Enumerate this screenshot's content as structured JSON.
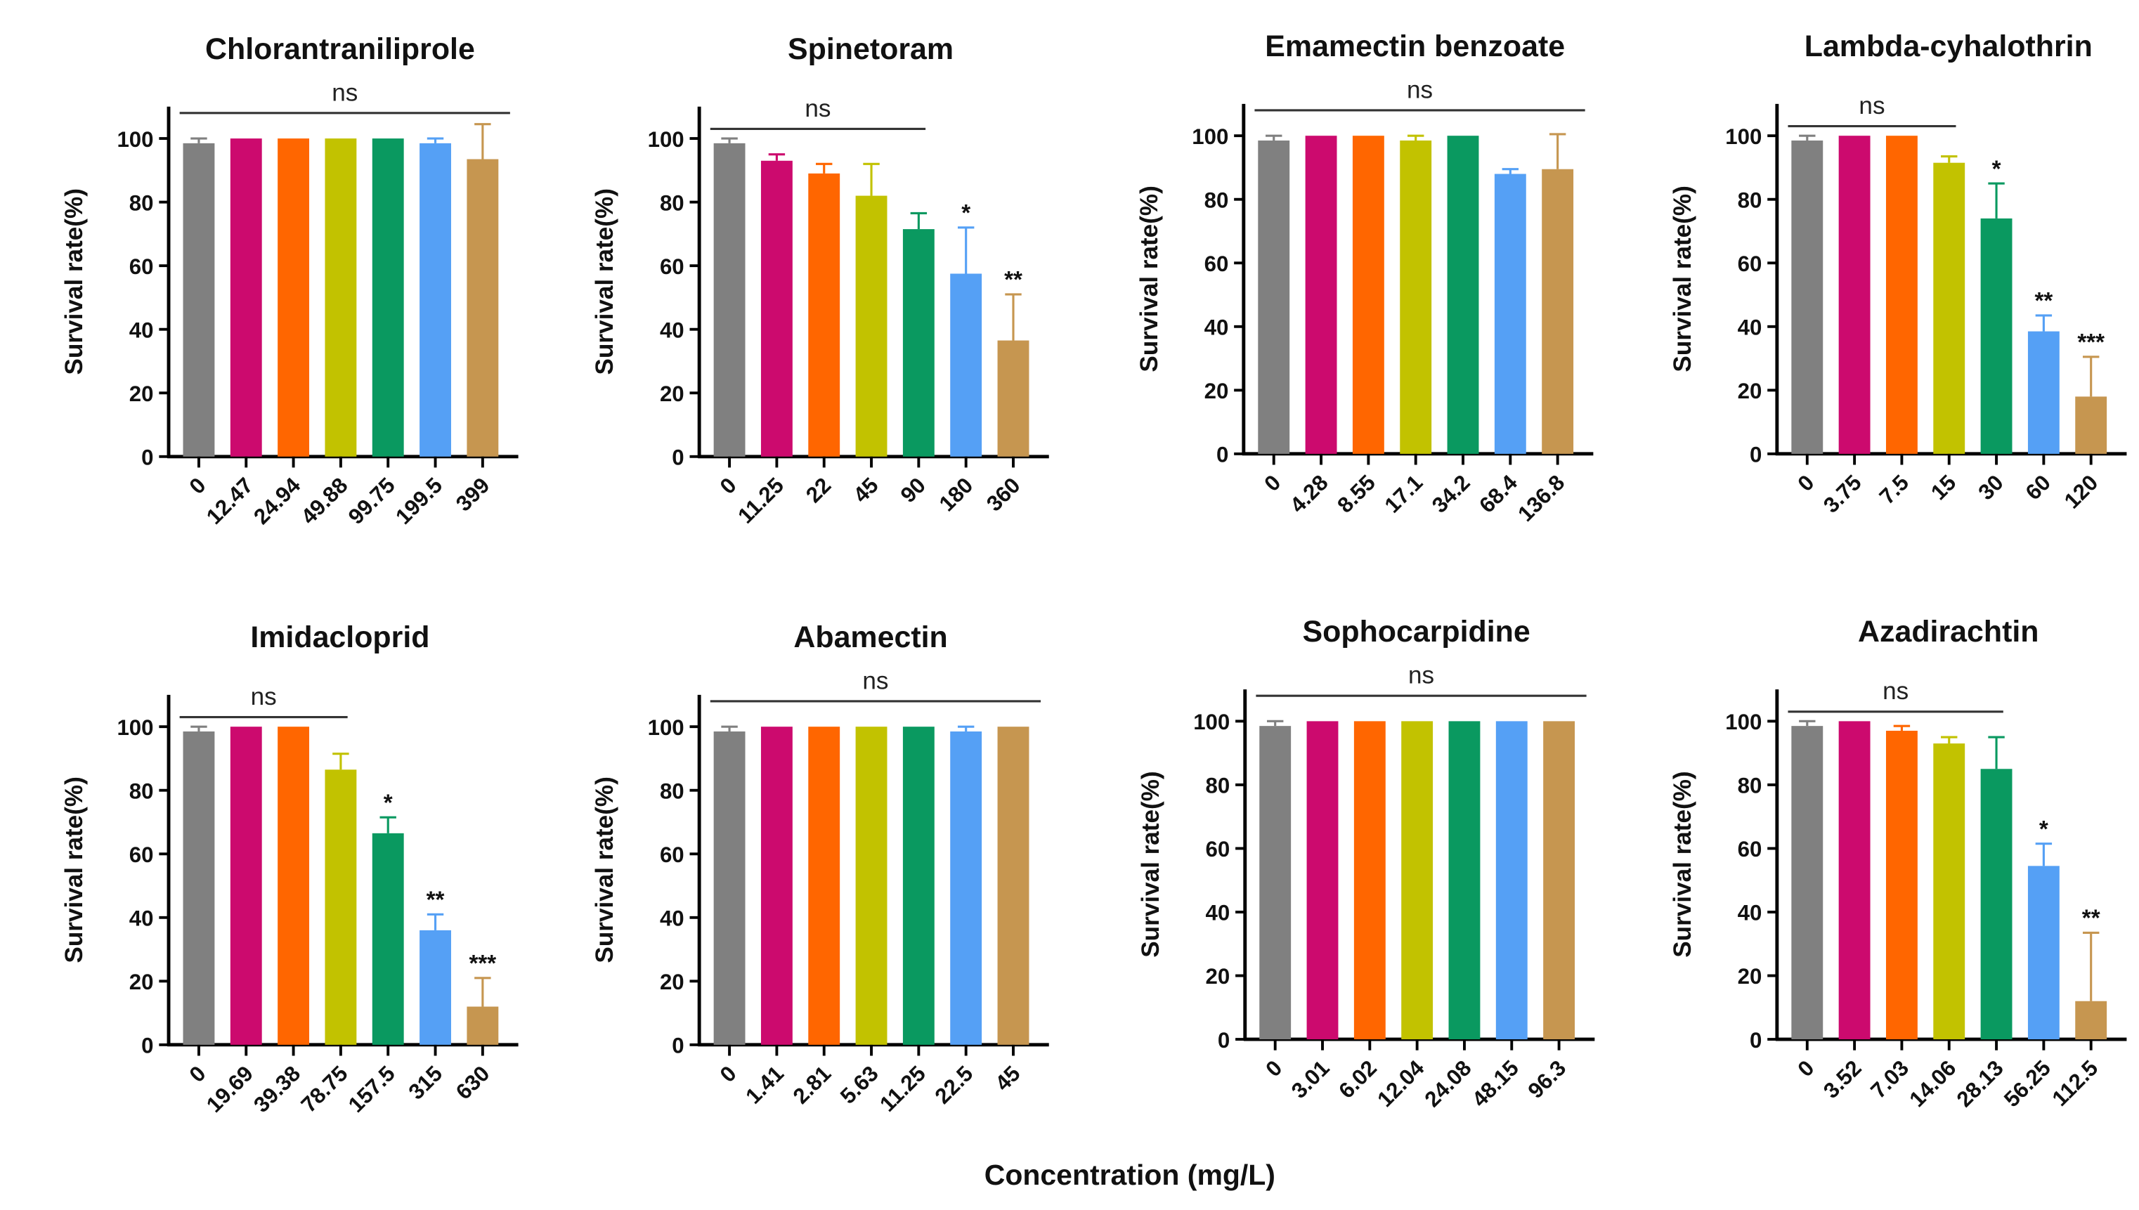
{
  "chart_data": [
    {
      "type": "bar",
      "title": "Chlorantraniliprole",
      "ylabel": "Survival rate(%)",
      "ylim": [
        0,
        110
      ],
      "yticks": [
        0,
        20,
        40,
        60,
        80,
        100
      ],
      "categories": [
        "0",
        "12.47",
        "24.94",
        "49.88",
        "99.75",
        "199.5",
        "399"
      ],
      "values": [
        98.5,
        100,
        100,
        100,
        100,
        98.5,
        93.5
      ],
      "errors": [
        1.5,
        0,
        0,
        0,
        0,
        1.5,
        11
      ],
      "significance": [
        "",
        "",
        "",
        "",
        "",
        "",
        ""
      ],
      "ns_label": "ns",
      "ns_span": [
        0,
        6
      ]
    },
    {
      "type": "bar",
      "title": "Spinetoram",
      "ylabel": "Survival rate(%)",
      "ylim": [
        0,
        110
      ],
      "yticks": [
        0,
        20,
        40,
        60,
        80,
        100
      ],
      "categories": [
        "0",
        "11.25",
        "22",
        "45",
        "90",
        "180",
        "360"
      ],
      "values": [
        98.5,
        93,
        89,
        82,
        71.5,
        57.5,
        36.5
      ],
      "errors": [
        1.5,
        2,
        3,
        10,
        5,
        14.5,
        14.5
      ],
      "significance": [
        "",
        "",
        "",
        "",
        "",
        "*",
        "**"
      ],
      "ns_label": "ns",
      "ns_span": [
        0,
        4
      ]
    },
    {
      "type": "bar",
      "title": "Emamectin benzoate",
      "ylabel": "Survival rate(%)",
      "ylim": [
        0,
        110
      ],
      "yticks": [
        0,
        20,
        40,
        60,
        80,
        100
      ],
      "categories": [
        "0",
        "4.28",
        "8.55",
        "17.1",
        "34.2",
        "68.4",
        "136.8"
      ],
      "values": [
        98.5,
        100,
        100,
        98.5,
        100,
        88,
        89.5
      ],
      "errors": [
        1.5,
        0,
        0,
        1.5,
        0,
        1.5,
        11
      ],
      "significance": [
        "",
        "",
        "",
        "",
        "",
        "",
        ""
      ],
      "ns_label": "ns",
      "ns_span": [
        0,
        6
      ]
    },
    {
      "type": "bar",
      "title": "Lambda-cyhalothrin",
      "ylabel": "Survival rate(%)",
      "ylim": [
        0,
        110
      ],
      "yticks": [
        0,
        20,
        40,
        60,
        80,
        100
      ],
      "categories": [
        "0",
        "3.75",
        "7.5",
        "15",
        "30",
        "60",
        "120"
      ],
      "values": [
        98.5,
        100,
        100,
        91.5,
        74,
        38.5,
        18
      ],
      "errors": [
        1.5,
        0,
        0,
        2,
        11,
        5,
        12.5
      ],
      "significance": [
        "",
        "",
        "",
        "",
        "*",
        "**",
        "***"
      ],
      "ns_label": "ns",
      "ns_span": [
        0,
        3
      ]
    },
    {
      "type": "bar",
      "title": "Imidacloprid",
      "ylabel": "Survival rate(%)",
      "ylim": [
        0,
        110
      ],
      "yticks": [
        0,
        20,
        40,
        60,
        80,
        100
      ],
      "categories": [
        "0",
        "19.69",
        "39.38",
        "78.75",
        "157.5",
        "315",
        "630"
      ],
      "values": [
        98.5,
        100,
        100,
        86.5,
        66.5,
        36,
        12
      ],
      "errors": [
        1.5,
        0,
        0,
        5,
        5,
        5,
        9
      ],
      "significance": [
        "",
        "",
        "",
        "",
        "*",
        "**",
        "***"
      ],
      "ns_label": "ns",
      "ns_span": [
        0,
        3
      ]
    },
    {
      "type": "bar",
      "title": "Abamectin",
      "ylabel": "Survival rate(%)",
      "ylim": [
        0,
        110
      ],
      "yticks": [
        0,
        20,
        40,
        60,
        80,
        100
      ],
      "categories": [
        "0",
        "1.41",
        "2.81",
        "5.63",
        "11.25",
        "22.5",
        "45"
      ],
      "values": [
        98.5,
        100,
        100,
        100,
        100,
        98.5,
        100
      ],
      "errors": [
        1.5,
        0,
        0,
        0,
        0,
        1.5,
        0
      ],
      "significance": [
        "",
        "",
        "",
        "",
        "",
        "",
        ""
      ],
      "ns_label": "ns",
      "ns_span": [
        0,
        6
      ]
    },
    {
      "type": "bar",
      "title": "Sophocarpidine",
      "ylabel": "Survival rate(%)",
      "ylim": [
        0,
        110
      ],
      "yticks": [
        0,
        20,
        40,
        60,
        80,
        100
      ],
      "categories": [
        "0",
        "3.01",
        "6.02",
        "12.04",
        "24.08",
        "48.15",
        "96.3"
      ],
      "values": [
        98.5,
        100,
        100,
        100,
        100,
        100,
        100
      ],
      "errors": [
        1.5,
        0,
        0,
        0,
        0,
        0,
        0
      ],
      "significance": [
        "",
        "",
        "",
        "",
        "",
        "",
        ""
      ],
      "ns_label": "ns",
      "ns_span": [
        0,
        6
      ]
    },
    {
      "type": "bar",
      "title": "Azadirachtin",
      "ylabel": "Survival rate(%)",
      "ylim": [
        0,
        110
      ],
      "yticks": [
        0,
        20,
        40,
        60,
        80,
        100
      ],
      "categories": [
        "0",
        "3.52",
        "7.03",
        "14.06",
        "28.13",
        "56.25",
        "112.5"
      ],
      "values": [
        98.5,
        100,
        97,
        93,
        85,
        54.5,
        12
      ],
      "errors": [
        1.5,
        0,
        1.5,
        2,
        10,
        7,
        21.5
      ],
      "significance": [
        "",
        "",
        "",
        "",
        "",
        "*",
        "**"
      ],
      "ns_label": "ns",
      "ns_span": [
        0,
        4
      ]
    }
  ],
  "shared_xlabel": "Concentration (mg/L)",
  "colors": [
    "#808080",
    "#cc0a6e",
    "#ff6600",
    "#c2c200",
    "#0a9960",
    "#55a0f5",
    "#c69650"
  ]
}
